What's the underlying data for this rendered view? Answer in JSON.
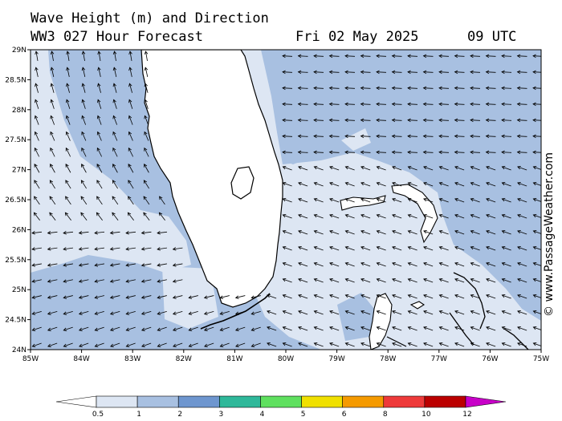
{
  "header": {
    "title": "Wave Height (m) and Direction",
    "model": "WW3 027 Hour Forecast",
    "date": "Fri 02 May 2025",
    "time": "09 UTC"
  },
  "credit": "© www.PassageWeather.com",
  "axes": {
    "lat_labels": [
      "29N",
      "28.5N",
      "28N",
      "27.5N",
      "27N",
      "26.5N",
      "26N",
      "25.5N",
      "25N",
      "24.5N",
      "24N"
    ],
    "lon_labels": [
      "85W",
      "84W",
      "83W",
      "82W",
      "81W",
      "80W",
      "79W",
      "78W",
      "77W",
      "76W",
      "75W"
    ]
  },
  "legend": {
    "ticks": [
      "0.5",
      "1",
      "2",
      "3",
      "4",
      "5",
      "6",
      "8",
      "10",
      "12"
    ],
    "colors": [
      "#dde6f3",
      "#a8c0e1",
      "#6e96cf",
      "#2fb89a",
      "#5fe05f",
      "#f0e000",
      "#f59a00",
      "#ee3a3a",
      "#bb0000",
      "#c800c8"
    ]
  },
  "map_colors": {
    "land": "#ffffff",
    "low": "#dde6f3",
    "mid": "#a8c0e1",
    "coast": "#000000"
  }
}
